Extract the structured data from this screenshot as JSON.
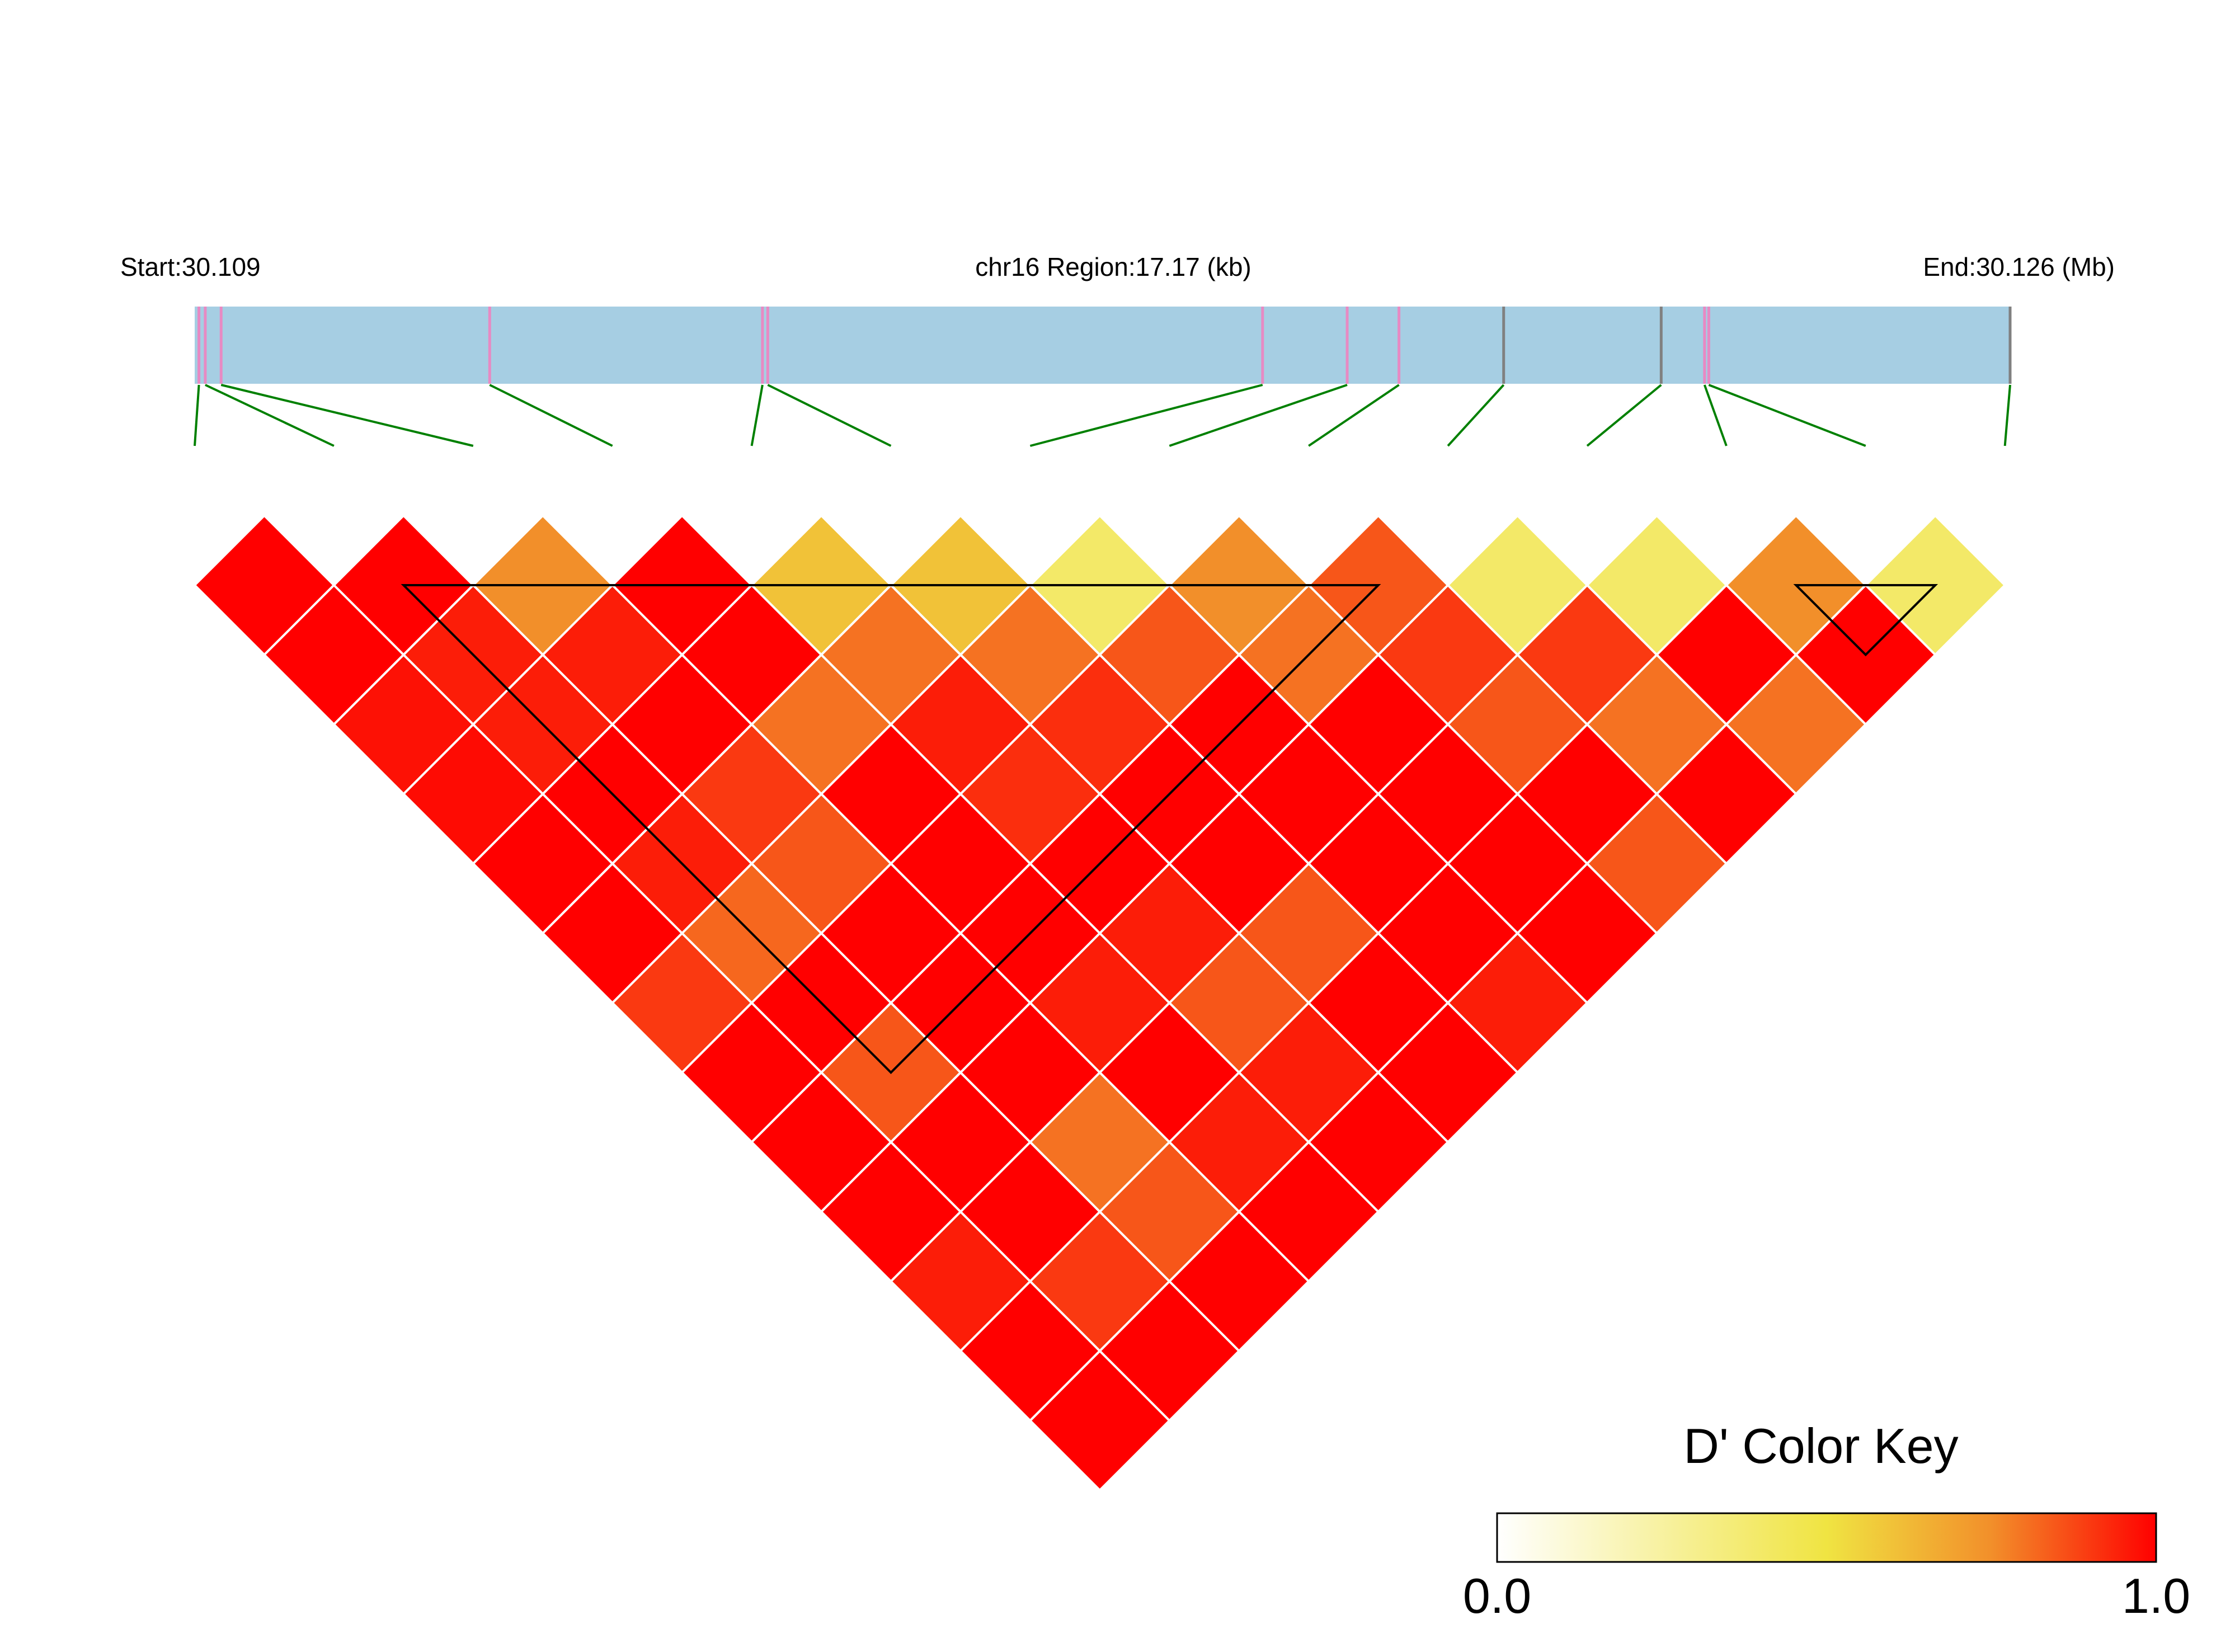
{
  "chart_data": {
    "type": "heatmap",
    "subtype": "ld-triangle",
    "header": {
      "start_label": "Start:30.109",
      "region_label": "chr16 Region:17.17 (kb)",
      "end_label": "End:30.126 (Mb)"
    },
    "region": {
      "start_kb": 0,
      "end_kb": 17.17
    },
    "colors": {
      "gene_bar": "#a6cee3",
      "snp_pink": "#e78ac3",
      "snp_gray": "#808080",
      "connector": "#008000",
      "cell_border": "#ffffff",
      "block_outline": "#000000"
    },
    "snps": [
      {
        "pos_kb": 0.04,
        "mark": "snp_pink"
      },
      {
        "pos_kb": 0.1,
        "mark": "snp_pink"
      },
      {
        "pos_kb": 0.25,
        "mark": "snp_pink"
      },
      {
        "pos_kb": 2.79,
        "mark": "snp_pink"
      },
      {
        "pos_kb": 5.37,
        "mark": "snp_pink"
      },
      {
        "pos_kb": 5.42,
        "mark": "snp_pink"
      },
      {
        "pos_kb": 10.1,
        "mark": "snp_pink"
      },
      {
        "pos_kb": 10.9,
        "mark": "snp_pink"
      },
      {
        "pos_kb": 11.39,
        "mark": "snp_pink"
      },
      {
        "pos_kb": 12.38,
        "mark": "snp_gray"
      },
      {
        "pos_kb": 13.87,
        "mark": "snp_gray"
      },
      {
        "pos_kb": 14.28,
        "mark": "snp_pink"
      },
      {
        "pos_kb": 14.32,
        "mark": "snp_pink"
      },
      {
        "pos_kb": 17.17,
        "mark": "snp_gray"
      }
    ],
    "dprime": [
      [
        1.0,
        1.0,
        0.75,
        1.0,
        0.6,
        0.6,
        0.4,
        0.75,
        0.85,
        0.4,
        0.4,
        0.75,
        0.4
      ],
      [
        1.0,
        0.95,
        0.95,
        1.0,
        0.8,
        0.8,
        0.85,
        0.8,
        0.9,
        0.9,
        1.0,
        1.0
      ],
      [
        0.97,
        0.95,
        1.0,
        0.8,
        0.95,
        0.92,
        1.0,
        1.0,
        0.85,
        0.8,
        0.8
      ],
      [
        0.98,
        1.0,
        0.9,
        1.0,
        0.92,
        1.0,
        1.0,
        1.0,
        1.0,
        1.0
      ],
      [
        1.0,
        0.95,
        0.85,
        1.0,
        1.0,
        1.0,
        1.0,
        1.0,
        0.85
      ],
      [
        1.0,
        0.82,
        1.0,
        1.0,
        0.95,
        0.85,
        1.0,
        1.0
      ],
      [
        0.9,
        1.0,
        1.0,
        0.95,
        0.85,
        1.0,
        0.95
      ],
      [
        1.0,
        0.85,
        1.0,
        1.0,
        0.95,
        1.0
      ],
      [
        1.0,
        1.0,
        0.8,
        0.95,
        1.0
      ],
      [
        1.0,
        1.0,
        0.85,
        1.0
      ],
      [
        0.95,
        0.9,
        1.0
      ],
      [
        1.0,
        1.0
      ],
      [
        1.0
      ]
    ],
    "blocks": [
      {
        "first_snp": 1,
        "last_snp": 8
      },
      {
        "first_snp": 11,
        "last_snp": 12
      }
    ],
    "color_key": {
      "title": "D' Color Key",
      "min_label": "0.0",
      "max_label": "1.0",
      "stops": [
        {
          "value": 0.0,
          "color": "#ffffff"
        },
        {
          "value": 0.5,
          "color": "#f0e442"
        },
        {
          "value": 0.75,
          "color": "#f28f2a"
        },
        {
          "value": 1.0,
          "color": "#ff0000"
        }
      ]
    }
  }
}
